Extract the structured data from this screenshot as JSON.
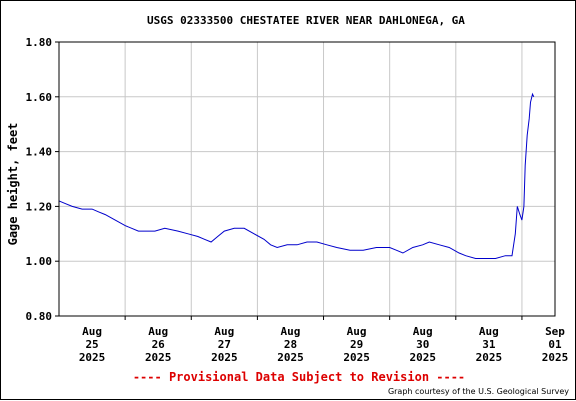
{
  "chart_data": {
    "type": "line",
    "title": "USGS 02333500 CHESTATEE RIVER NEAR DAHLONEGA, GA",
    "ylabel": "Gage height, feet",
    "xlabel": "",
    "ylim": [
      0.8,
      1.8
    ],
    "xlim": [
      0,
      7.5
    ],
    "yticks": [
      {
        "value": 0.8,
        "label": "0.80"
      },
      {
        "value": 1.0,
        "label": "1.00"
      },
      {
        "value": 1.2,
        "label": "1.20"
      },
      {
        "value": 1.4,
        "label": "1.40"
      },
      {
        "value": 1.6,
        "label": "1.60"
      },
      {
        "value": 1.8,
        "label": "1.80"
      }
    ],
    "xticks": [
      {
        "value": 0.5,
        "lines": [
          "Aug",
          "25",
          "2025"
        ]
      },
      {
        "value": 1.5,
        "lines": [
          "Aug",
          "26",
          "2025"
        ]
      },
      {
        "value": 2.5,
        "lines": [
          "Aug",
          "27",
          "2025"
        ]
      },
      {
        "value": 3.5,
        "lines": [
          "Aug",
          "28",
          "2025"
        ]
      },
      {
        "value": 4.5,
        "lines": [
          "Aug",
          "29",
          "2025"
        ]
      },
      {
        "value": 5.5,
        "lines": [
          "Aug",
          "30",
          "2025"
        ]
      },
      {
        "value": 6.5,
        "lines": [
          "Aug",
          "31",
          "2025"
        ]
      },
      {
        "value": 7.5,
        "lines": [
          "Sep",
          "01",
          "2025"
        ]
      }
    ],
    "vgrid": [
      1,
      2,
      3,
      4,
      5,
      6,
      7
    ],
    "grid": true,
    "series": [
      {
        "color": "#0000cc",
        "x": [
          0,
          0.1,
          0.2,
          0.35,
          0.5,
          0.6,
          0.7,
          0.85,
          1.0,
          1.1,
          1.2,
          1.3,
          1.45,
          1.6,
          1.8,
          1.95,
          2.1,
          2.2,
          2.3,
          2.4,
          2.5,
          2.65,
          2.8,
          2.95,
          3.1,
          3.2,
          3.3,
          3.45,
          3.6,
          3.75,
          3.9,
          4.05,
          4.2,
          4.4,
          4.6,
          4.8,
          5.0,
          5.1,
          5.2,
          5.35,
          5.5,
          5.6,
          5.75,
          5.9,
          6.05,
          6.15,
          6.3,
          6.45,
          6.6,
          6.75,
          6.85,
          6.9,
          6.93,
          6.97,
          7.0,
          7.03,
          7.05,
          7.08,
          7.11,
          7.13,
          7.16,
          7.18
        ],
        "values": [
          1.22,
          1.21,
          1.2,
          1.19,
          1.19,
          1.18,
          1.17,
          1.15,
          1.13,
          1.12,
          1.11,
          1.11,
          1.11,
          1.12,
          1.11,
          1.1,
          1.09,
          1.08,
          1.07,
          1.09,
          1.11,
          1.12,
          1.12,
          1.1,
          1.08,
          1.06,
          1.05,
          1.06,
          1.06,
          1.07,
          1.07,
          1.06,
          1.05,
          1.04,
          1.04,
          1.05,
          1.05,
          1.04,
          1.03,
          1.05,
          1.06,
          1.07,
          1.06,
          1.05,
          1.03,
          1.02,
          1.01,
          1.01,
          1.01,
          1.02,
          1.02,
          1.1,
          1.2,
          1.17,
          1.15,
          1.2,
          1.35,
          1.46,
          1.52,
          1.58,
          1.61,
          1.6
        ]
      }
    ]
  },
  "footer": {
    "provisional": "---- Provisional Data Subject to Revision ----",
    "provisional_color": "#dd0000",
    "credit": "Graph courtesy of the U.S. Geological Survey"
  }
}
